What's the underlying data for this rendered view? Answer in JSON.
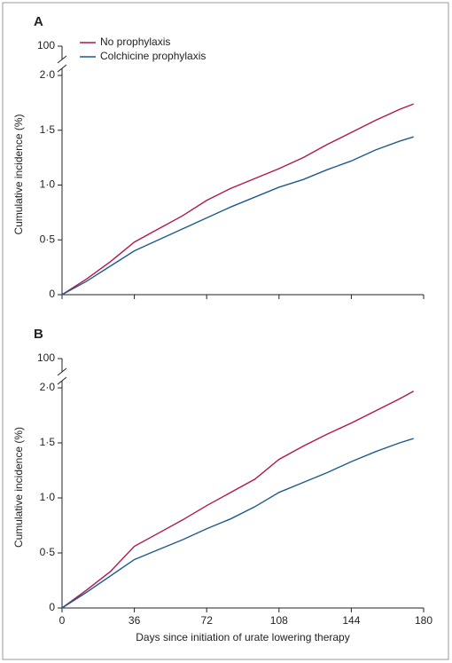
{
  "chart_data": [
    {
      "type": "line",
      "title": "A",
      "y_label": "Cumulative incidence (%)",
      "x": [
        0,
        12,
        24,
        36,
        48,
        60,
        72,
        84,
        96,
        108,
        120,
        132,
        144,
        156,
        168,
        175
      ],
      "series": [
        {
          "name": "No prophylaxis",
          "color": "#b0174f",
          "values": [
            0,
            0.14,
            0.3,
            0.48,
            0.6,
            0.72,
            0.86,
            0.97,
            1.06,
            1.15,
            1.25,
            1.37,
            1.48,
            1.59,
            1.69,
            1.74
          ]
        },
        {
          "name": "Colchicine prophylaxis",
          "color": "#1e5b8c",
          "values": [
            0,
            0.12,
            0.26,
            0.4,
            0.5,
            0.6,
            0.7,
            0.8,
            0.89,
            0.98,
            1.05,
            1.14,
            1.22,
            1.32,
            1.4,
            1.44
          ]
        }
      ],
      "xlim": [
        0,
        180
      ],
      "xticks": [
        0,
        36,
        72,
        108,
        144,
        180
      ],
      "xtick_labels": false,
      "ylim": [
        0,
        2.0
      ],
      "yticks": [
        0,
        {
          "value": 0.5,
          "label": "0·5"
        },
        {
          "value": 1.0,
          "label": "1·0"
        },
        {
          "value": 1.5,
          "label": "1·5"
        },
        {
          "value": 2.0,
          "label": "2·0"
        }
      ],
      "break_tick": 100,
      "legend": "upper left"
    },
    {
      "type": "line",
      "title": "B",
      "y_label": "Cumulative incidence (%)",
      "x_label": "Days since initiation of urate lowering therapy",
      "x": [
        0,
        12,
        24,
        36,
        48,
        60,
        72,
        84,
        96,
        108,
        120,
        132,
        144,
        156,
        168,
        175
      ],
      "series": [
        {
          "color": "#b0174f",
          "values": [
            0,
            0.16,
            0.33,
            0.56,
            0.68,
            0.8,
            0.93,
            1.05,
            1.17,
            1.35,
            1.47,
            1.58,
            1.68,
            1.79,
            1.9,
            1.97
          ]
        },
        {
          "color": "#1e5b8c",
          "values": [
            0,
            0.14,
            0.29,
            0.44,
            0.53,
            0.62,
            0.72,
            0.81,
            0.92,
            1.05,
            1.14,
            1.23,
            1.33,
            1.42,
            1.5,
            1.54
          ]
        }
      ],
      "xlim": [
        0,
        180
      ],
      "xticks": [
        0,
        36,
        72,
        108,
        144,
        180
      ],
      "xtick_labels": true,
      "ylim": [
        0,
        2.0
      ],
      "yticks": [
        0,
        {
          "value": 0.5,
          "label": "0·5"
        },
        {
          "value": 1.0,
          "label": "1·0"
        },
        {
          "value": 1.5,
          "label": "1·5"
        },
        {
          "value": 2.0,
          "label": "2·0"
        }
      ],
      "break_tick": 100
    }
  ]
}
